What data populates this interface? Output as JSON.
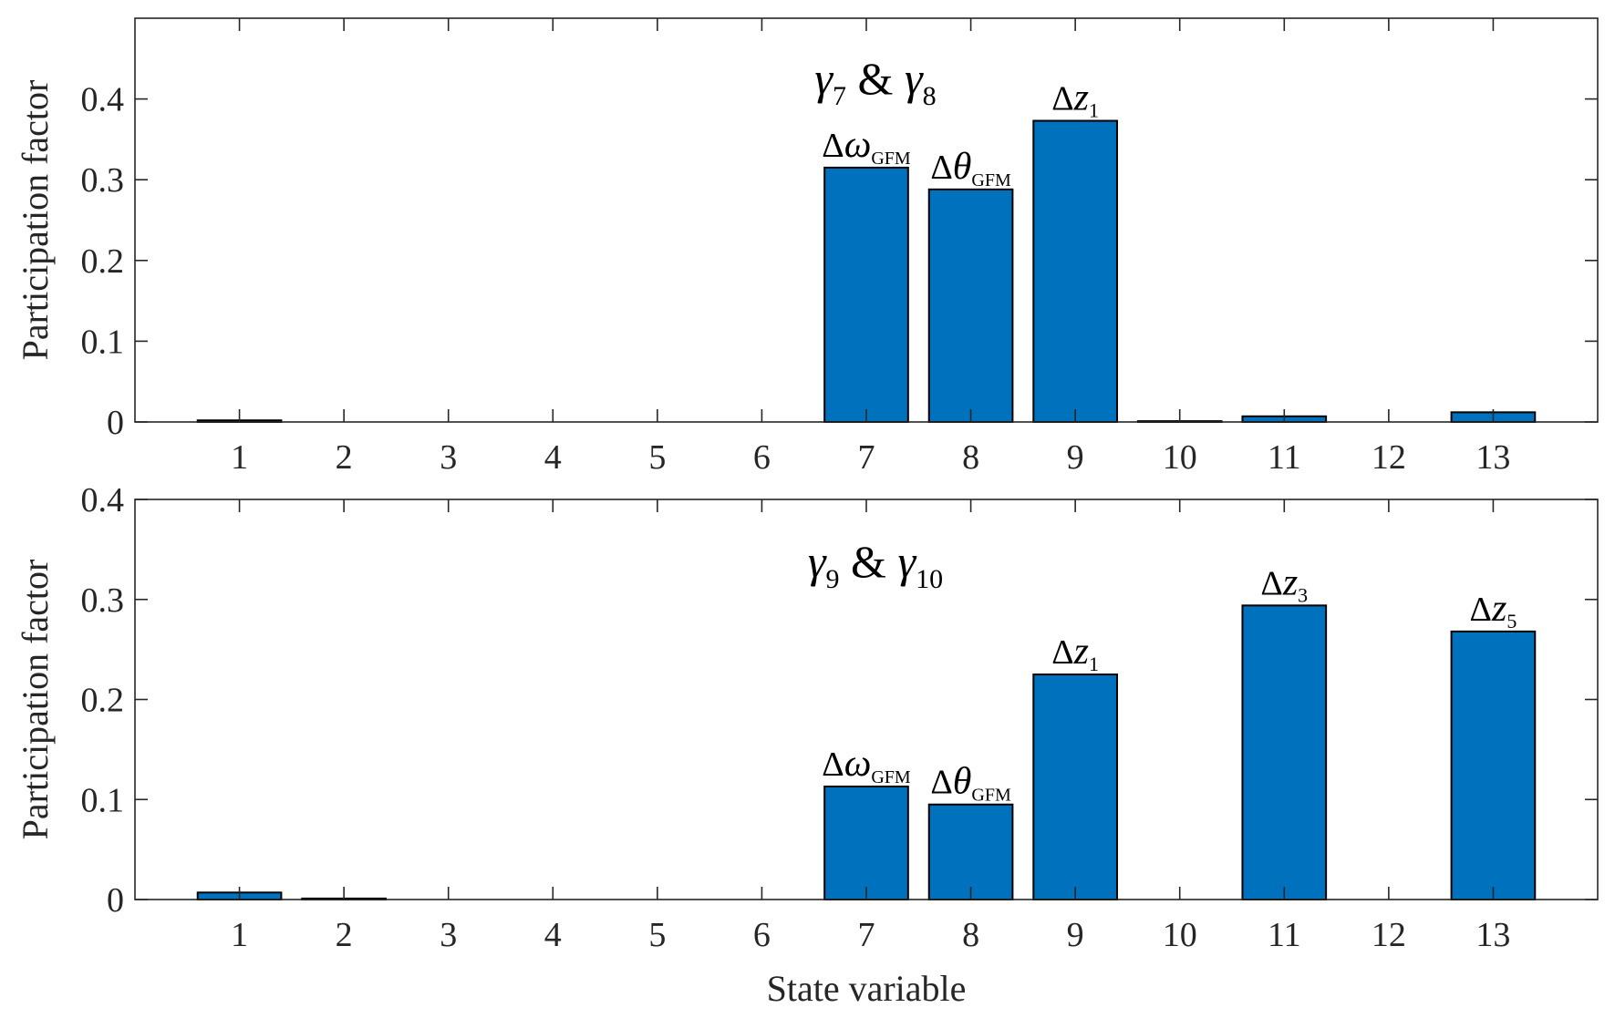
{
  "chart_data": [
    {
      "type": "bar",
      "title_parts": {
        "g1": "γ",
        "s1": "7",
        "amp": " & ",
        "g2": "γ",
        "s2": "8"
      },
      "categories": [
        "1",
        "2",
        "3",
        "4",
        "5",
        "6",
        "7",
        "8",
        "9",
        "10",
        "11",
        "12",
        "13"
      ],
      "values": [
        0.002,
        0.0,
        0.0,
        0.0,
        0.0,
        0.0,
        0.315,
        0.288,
        0.373,
        0.001,
        0.007,
        0.0,
        0.012
      ],
      "ylabel": "Participation factor",
      "xlabel": "",
      "ylim": [
        0,
        0.5
      ],
      "yticks": [
        0,
        0.1,
        0.2,
        0.3,
        0.4
      ],
      "ytick_labels": [
        "0",
        "0.1",
        "0.2",
        "0.3",
        "0.4"
      ],
      "bar_color": "#0072BD",
      "annotations": [
        {
          "category": "7",
          "delta": "Δ",
          "sym": "ω",
          "sub": "GFM"
        },
        {
          "category": "8",
          "delta": "Δ",
          "sym": "θ",
          "sub": "GFM"
        },
        {
          "category": "9",
          "delta": "Δ",
          "sym": "z",
          "sub": "1"
        }
      ]
    },
    {
      "type": "bar",
      "title_parts": {
        "g1": "γ",
        "s1": "9",
        "amp": " & ",
        "g2": "γ",
        "s2": "10"
      },
      "categories": [
        "1",
        "2",
        "3",
        "4",
        "5",
        "6",
        "7",
        "8",
        "9",
        "10",
        "11",
        "12",
        "13"
      ],
      "values": [
        0.007,
        0.001,
        0.0,
        0.0,
        0.0,
        0.0,
        0.113,
        0.095,
        0.225,
        0.0,
        0.294,
        0.0,
        0.268
      ],
      "ylabel": "Participation factor",
      "xlabel": "State variable",
      "ylim": [
        0,
        0.4
      ],
      "yticks": [
        0,
        0.1,
        0.2,
        0.3,
        0.4
      ],
      "ytick_labels": [
        "0",
        "0.1",
        "0.2",
        "0.3",
        "0.4"
      ],
      "bar_color": "#0072BD",
      "annotations": [
        {
          "category": "7",
          "delta": "Δ",
          "sym": "ω",
          "sub": "GFM"
        },
        {
          "category": "8",
          "delta": "Δ",
          "sym": "θ",
          "sub": "GFM"
        },
        {
          "category": "9",
          "delta": "Δ",
          "sym": "z",
          "sub": "1"
        },
        {
          "category": "11",
          "delta": "Δ",
          "sym": "z",
          "sub": "3"
        },
        {
          "category": "13",
          "delta": "Δ",
          "sym": "z",
          "sub": "5"
        }
      ]
    }
  ]
}
